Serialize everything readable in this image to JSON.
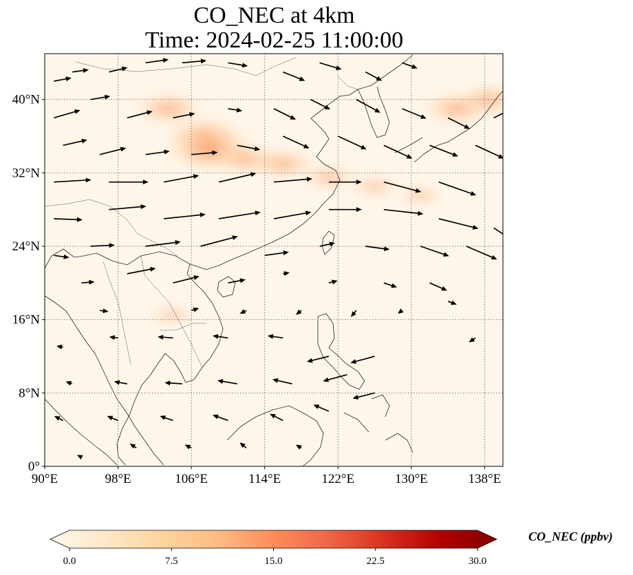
{
  "title": {
    "line1": "CO_NEC at 4km",
    "line2": "Time: 2024-02-25 11:00:00"
  },
  "map": {
    "variable": "CO_NEC",
    "height": "4km",
    "extent_lon": [
      90,
      140
    ],
    "extent_lat": [
      0,
      45
    ],
    "x_ticks": [
      {
        "value": 90,
        "label": "90°E"
      },
      {
        "value": 98,
        "label": "98°E"
      },
      {
        "value": 106,
        "label": "106°E"
      },
      {
        "value": 114,
        "label": "114°E"
      },
      {
        "value": 122,
        "label": "122°E"
      },
      {
        "value": 130,
        "label": "130°E"
      },
      {
        "value": 138,
        "label": "138°E"
      }
    ],
    "y_ticks": [
      {
        "value": 0,
        "label": "0°"
      },
      {
        "value": 8,
        "label": "8°N"
      },
      {
        "value": 16,
        "label": "16°N"
      },
      {
        "value": 24,
        "label": "24°N"
      },
      {
        "value": 32,
        "label": "32°N"
      },
      {
        "value": 40,
        "label": "40°N"
      }
    ],
    "gridlines": true,
    "background_color": "#fff6ea",
    "line_color": "#222222"
  },
  "colorbar": {
    "label": "CO_NEC (ppbv)",
    "colormap": "OrRd",
    "min": 0.0,
    "max": 30.0,
    "extend": "both",
    "ticks": [
      {
        "value": 0.0,
        "label": "0.0"
      },
      {
        "value": 7.5,
        "label": "7.5"
      },
      {
        "value": 15.0,
        "label": "15.0"
      },
      {
        "value": 22.5,
        "label": "22.5"
      },
      {
        "value": 30.0,
        "label": "30.0"
      }
    ],
    "stops": [
      "#fff7ec",
      "#fee8c8",
      "#fdd49e",
      "#fdbb84",
      "#fc8d59",
      "#ef6548",
      "#d7301f",
      "#b30000",
      "#7f0000"
    ]
  },
  "concentration_plumes": [
    {
      "lon": 103.5,
      "lat": 39.0,
      "value": 9
    },
    {
      "lon": 107.5,
      "lat": 36.0,
      "value": 11
    },
    {
      "lon": 108.0,
      "lat": 34.5,
      "value": 13
    },
    {
      "lon": 112.0,
      "lat": 33.5,
      "value": 8
    },
    {
      "lon": 116.0,
      "lat": 33.0,
      "value": 8
    },
    {
      "lon": 121.0,
      "lat": 31.5,
      "value": 6
    },
    {
      "lon": 126.0,
      "lat": 30.5,
      "value": 5
    },
    {
      "lon": 131.0,
      "lat": 29.5,
      "value": 4
    },
    {
      "lon": 135.0,
      "lat": 39.0,
      "value": 9
    },
    {
      "lon": 138.5,
      "lat": 40.0,
      "value": 8
    },
    {
      "lon": 104.0,
      "lat": 16.5,
      "value": 4
    }
  ],
  "wind_vectors": [
    {
      "lon": 91,
      "lat": 42,
      "u": 1.6,
      "v": 0.3
    },
    {
      "lon": 93,
      "lat": 43,
      "u": 1.5,
      "v": 0.2
    },
    {
      "lon": 97,
      "lat": 43,
      "u": 1.7,
      "v": 0.4
    },
    {
      "lon": 101,
      "lat": 44,
      "u": 2.1,
      "v": 0.3
    },
    {
      "lon": 105,
      "lat": 44,
      "u": 2.2,
      "v": 0.2
    },
    {
      "lon": 110,
      "lat": 44,
      "u": 1.8,
      "v": -0.3
    },
    {
      "lon": 116,
      "lat": 43,
      "u": 2.0,
      "v": -0.8
    },
    {
      "lon": 120,
      "lat": 44,
      "u": 2.0,
      "v": -0.6
    },
    {
      "lon": 125,
      "lat": 43,
      "u": 1.5,
      "v": -0.8
    },
    {
      "lon": 129,
      "lat": 44,
      "u": 1.4,
      "v": -0.5
    },
    {
      "lon": 91,
      "lat": 38,
      "u": 2.4,
      "v": 0.7
    },
    {
      "lon": 95,
      "lat": 40,
      "u": 1.8,
      "v": 0.3
    },
    {
      "lon": 99,
      "lat": 38,
      "u": 2.3,
      "v": 0.6
    },
    {
      "lon": 104,
      "lat": 38,
      "u": 2.0,
      "v": 0.4
    },
    {
      "lon": 110,
      "lat": 39,
      "u": 1.3,
      "v": -0.2
    },
    {
      "lon": 115,
      "lat": 39,
      "u": 2.0,
      "v": -1.0
    },
    {
      "lon": 119,
      "lat": 40,
      "u": 1.8,
      "v": -0.9
    },
    {
      "lon": 124,
      "lat": 40,
      "u": 2.2,
      "v": -1.2
    },
    {
      "lon": 129,
      "lat": 39,
      "u": 2.2,
      "v": -0.9
    },
    {
      "lon": 134,
      "lat": 38,
      "u": 2.0,
      "v": -1.0
    },
    {
      "lon": 139,
      "lat": 38,
      "u": 1.8,
      "v": 0.9
    },
    {
      "lon": 92,
      "lat": 35,
      "u": 2.2,
      "v": 0.5
    },
    {
      "lon": 96,
      "lat": 34,
      "u": 2.4,
      "v": 0.6
    },
    {
      "lon": 101,
      "lat": 34,
      "u": 2.2,
      "v": 0.3
    },
    {
      "lon": 106,
      "lat": 34,
      "u": 2.4,
      "v": 0.2
    },
    {
      "lon": 111,
      "lat": 35,
      "u": 2.1,
      "v": -0.4
    },
    {
      "lon": 116,
      "lat": 36,
      "u": 2.4,
      "v": -1.1
    },
    {
      "lon": 122,
      "lat": 36,
      "u": 2.6,
      "v": -1.2
    },
    {
      "lon": 127,
      "lat": 35,
      "u": 2.6,
      "v": -1.2
    },
    {
      "lon": 132,
      "lat": 35,
      "u": 2.6,
      "v": -1.0
    },
    {
      "lon": 137,
      "lat": 35,
      "u": 2.6,
      "v": -1.2
    },
    {
      "lon": 91,
      "lat": 31,
      "u": 3.4,
      "v": 0.2
    },
    {
      "lon": 97,
      "lat": 31,
      "u": 3.6,
      "v": 0.0
    },
    {
      "lon": 103,
      "lat": 31,
      "u": 3.2,
      "v": 0.6
    },
    {
      "lon": 109,
      "lat": 31,
      "u": 3.4,
      "v": 0.8
    },
    {
      "lon": 115,
      "lat": 31,
      "u": 3.5,
      "v": 0.3
    },
    {
      "lon": 121,
      "lat": 31,
      "u": 3.0,
      "v": 0.0
    },
    {
      "lon": 127,
      "lat": 31,
      "u": 3.4,
      "v": -0.9
    },
    {
      "lon": 133,
      "lat": 31,
      "u": 3.4,
      "v": -1.2
    },
    {
      "lon": 91,
      "lat": 27,
      "u": 2.6,
      "v": -0.1
    },
    {
      "lon": 97,
      "lat": 28,
      "u": 3.4,
      "v": 0.3
    },
    {
      "lon": 103,
      "lat": 27,
      "u": 3.8,
      "v": 0.4
    },
    {
      "lon": 109,
      "lat": 27,
      "u": 3.8,
      "v": 0.6
    },
    {
      "lon": 115,
      "lat": 27,
      "u": 3.4,
      "v": 0.6
    },
    {
      "lon": 121,
      "lat": 28,
      "u": 3.0,
      "v": 0.0
    },
    {
      "lon": 127,
      "lat": 28,
      "u": 3.6,
      "v": -0.4
    },
    {
      "lon": 133,
      "lat": 27,
      "u": 3.6,
      "v": -0.9
    },
    {
      "lon": 139,
      "lat": 26,
      "u": 1.5,
      "v": -1.0
    },
    {
      "lon": 91,
      "lat": 23,
      "u": 1.4,
      "v": -0.2
    },
    {
      "lon": 95,
      "lat": 24,
      "u": 2.2,
      "v": 0.1
    },
    {
      "lon": 101,
      "lat": 24,
      "u": 3.2,
      "v": 0.4
    },
    {
      "lon": 107,
      "lat": 24,
      "u": 3.4,
      "v": 0.9
    },
    {
      "lon": 114,
      "lat": 23,
      "u": 2.2,
      "v": 0.3
    },
    {
      "lon": 120,
      "lat": 24,
      "u": 1.4,
      "v": 0.3
    },
    {
      "lon": 125,
      "lat": 24,
      "u": 2.2,
      "v": -0.3
    },
    {
      "lon": 131,
      "lat": 24,
      "u": 2.6,
      "v": -0.9
    },
    {
      "lon": 136,
      "lat": 24,
      "u": 2.8,
      "v": -1.2
    },
    {
      "lon": 94,
      "lat": 20,
      "u": 1.2,
      "v": 0.1
    },
    {
      "lon": 99,
      "lat": 21,
      "u": 2.6,
      "v": 0.5
    },
    {
      "lon": 104,
      "lat": 20,
      "u": 2.4,
      "v": 0.6
    },
    {
      "lon": 110,
      "lat": 20,
      "u": 1.6,
      "v": 0.3
    },
    {
      "lon": 116,
      "lat": 21,
      "u": 0.6,
      "v": 0.1
    },
    {
      "lon": 121,
      "lat": 20,
      "u": 0.8,
      "v": 0.2
    },
    {
      "lon": 127,
      "lat": 20,
      "u": 1.2,
      "v": -0.4
    },
    {
      "lon": 132,
      "lat": 20,
      "u": 1.6,
      "v": -0.7
    },
    {
      "lon": 96,
      "lat": 17,
      "u": 0.8,
      "v": -0.1
    },
    {
      "lon": 106,
      "lat": 17,
      "u": 0.7,
      "v": 0.2
    },
    {
      "lon": 112,
      "lat": 17,
      "u": -0.6,
      "v": -0.3
    },
    {
      "lon": 118,
      "lat": 17,
      "u": -0.5,
      "v": -0.4
    },
    {
      "lon": 124,
      "lat": 17,
      "u": -0.5,
      "v": -0.6
    },
    {
      "lon": 129,
      "lat": 17,
      "u": -0.4,
      "v": -0.3
    },
    {
      "lon": 134,
      "lat": 18,
      "u": 0.8,
      "v": -0.3
    },
    {
      "lon": 92,
      "lat": 13,
      "u": -0.6,
      "v": 0.1
    },
    {
      "lon": 98,
      "lat": 14,
      "u": -0.8,
      "v": 0.1
    },
    {
      "lon": 104,
      "lat": 14,
      "u": -1.4,
      "v": 0.1
    },
    {
      "lon": 110,
      "lat": 14,
      "u": -1.4,
      "v": 0.2
    },
    {
      "lon": 116,
      "lat": 14,
      "u": -1.4,
      "v": 0.2
    },
    {
      "lon": 121,
      "lat": 12,
      "u": -2.0,
      "v": -0.5
    },
    {
      "lon": 126,
      "lat": 12,
      "u": -2.2,
      "v": -0.6
    },
    {
      "lon": 137,
      "lat": 14,
      "u": -0.6,
      "v": -0.4
    },
    {
      "lon": 93,
      "lat": 9,
      "u": -0.6,
      "v": 0.2
    },
    {
      "lon": 99,
      "lat": 9,
      "u": -1.2,
      "v": 0.2
    },
    {
      "lon": 105,
      "lat": 9,
      "u": -1.6,
      "v": 0.1
    },
    {
      "lon": 111,
      "lat": 9,
      "u": -1.8,
      "v": 0.3
    },
    {
      "lon": 117,
      "lat": 9,
      "u": -1.8,
      "v": 0.4
    },
    {
      "lon": 123,
      "lat": 10,
      "u": -2.2,
      "v": -0.6
    },
    {
      "lon": 92,
      "lat": 5,
      "u": -0.8,
      "v": 0.4
    },
    {
      "lon": 98,
      "lat": 5,
      "u": -1.0,
      "v": 0.4
    },
    {
      "lon": 104,
      "lat": 5,
      "u": -1.2,
      "v": 0.4
    },
    {
      "lon": 110,
      "lat": 5,
      "u": -1.4,
      "v": 0.5
    },
    {
      "lon": 116,
      "lat": 5,
      "u": -1.2,
      "v": 0.6
    },
    {
      "lon": 121,
      "lat": 6,
      "u": -1.4,
      "v": 0.6
    },
    {
      "lon": 126,
      "lat": 8,
      "u": -2.0,
      "v": -0.5
    },
    {
      "lon": 94,
      "lat": 1,
      "u": -0.4,
      "v": 0.2
    },
    {
      "lon": 100,
      "lat": 2,
      "u": -0.6,
      "v": 0.4
    },
    {
      "lon": 106,
      "lat": 2,
      "u": -0.6,
      "v": 0.3
    },
    {
      "lon": 112,
      "lat": 2,
      "u": -0.6,
      "v": 0.5
    },
    {
      "lon": 118,
      "lat": 2,
      "u": -0.5,
      "v": 0.3
    }
  ]
}
